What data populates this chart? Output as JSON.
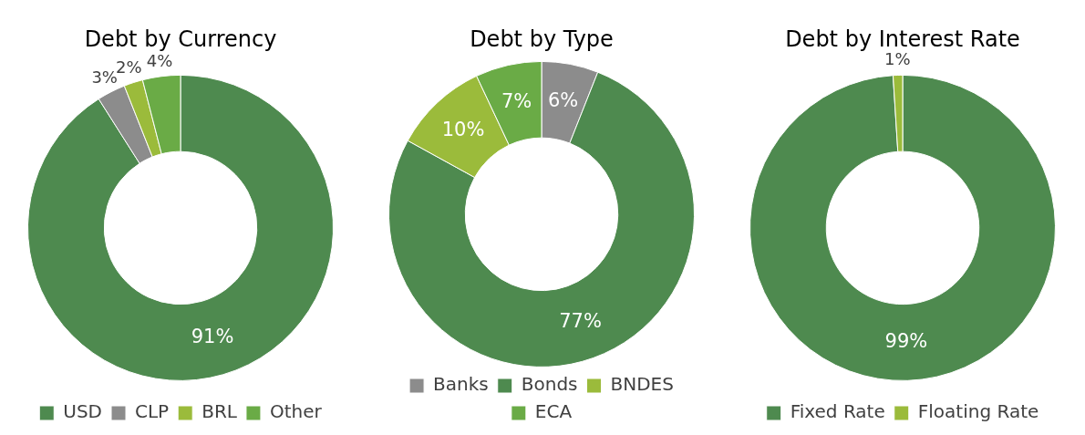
{
  "chart_data": [
    {
      "type": "donut",
      "title": "Debt by Currency",
      "categories": [
        "USD",
        "CLP",
        "BRL",
        "Other"
      ],
      "values": [
        91,
        3,
        2,
        4
      ],
      "value_labels": [
        "91%",
        "3%",
        "2%",
        "4%"
      ],
      "colors": [
        "#4e8a4f",
        "#8c8c8c",
        "#9bbb3b",
        "#6aab46"
      ],
      "legend": "bottom"
    },
    {
      "type": "donut",
      "title": "Debt by Type",
      "categories": [
        "Banks",
        "Bonds",
        "BNDES",
        "ECA"
      ],
      "values": [
        6,
        77,
        10,
        7
      ],
      "value_labels": [
        "6%",
        "77%",
        "10%",
        "7%"
      ],
      "colors": [
        "#8c8c8c",
        "#4e8a4f",
        "#9bbb3b",
        "#6aab46"
      ],
      "legend": "bottom"
    },
    {
      "type": "donut",
      "title": "Debt by Interest Rate",
      "categories": [
        "Fixed Rate",
        "Floating Rate"
      ],
      "values": [
        99,
        1
      ],
      "value_labels": [
        "99%",
        "1%"
      ],
      "colors": [
        "#4e8a4f",
        "#9bbb3b"
      ],
      "legend": "bottom"
    }
  ]
}
